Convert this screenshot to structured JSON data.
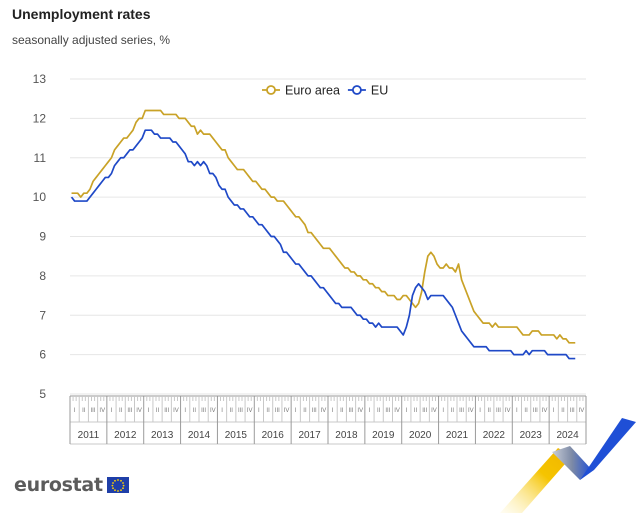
{
  "header": {
    "title": "Unemployment rates",
    "subtitle": "seasonally adjusted series, %"
  },
  "branding": {
    "logo_text": "eurostat",
    "flag_icon": "eu-flag-icon"
  },
  "colors": {
    "euro_area": "#c9a227",
    "eu": "#1f49c7",
    "grid": "#e6e6e6",
    "axis_text": "#555555"
  },
  "chart_data": {
    "type": "line",
    "title": "Unemployment rates",
    "subtitle": "seasonally adjusted series, %",
    "xlabel": "",
    "ylabel": "",
    "ylim": [
      5,
      13
    ],
    "yticks": [
      5,
      6,
      7,
      8,
      9,
      10,
      11,
      12,
      13
    ],
    "grid": true,
    "legend_position": "top-center",
    "x_start": "2011-01",
    "x_end": "2024-09",
    "frequency": "monthly",
    "years": [
      "2011",
      "2012",
      "2013",
      "2014",
      "2015",
      "2016",
      "2017",
      "2018",
      "2019",
      "2020",
      "2021",
      "2022",
      "2023",
      "2024"
    ],
    "quarter_labels": [
      "I",
      "II",
      "III",
      "IV"
    ],
    "series": [
      {
        "name": "Euro area",
        "color": "#c9a227",
        "values": [
          10.1,
          10.1,
          10.1,
          10.0,
          10.1,
          10.1,
          10.2,
          10.4,
          10.5,
          10.6,
          10.7,
          10.8,
          10.9,
          11.0,
          11.2,
          11.3,
          11.4,
          11.5,
          11.5,
          11.6,
          11.7,
          11.9,
          12.0,
          12.0,
          12.2,
          12.2,
          12.2,
          12.2,
          12.2,
          12.2,
          12.1,
          12.1,
          12.1,
          12.1,
          12.1,
          12.0,
          12.0,
          12.0,
          11.9,
          11.8,
          11.8,
          11.6,
          11.7,
          11.6,
          11.6,
          11.6,
          11.5,
          11.4,
          11.3,
          11.2,
          11.2,
          11.0,
          10.9,
          10.8,
          10.7,
          10.7,
          10.7,
          10.6,
          10.5,
          10.4,
          10.4,
          10.3,
          10.2,
          10.2,
          10.1,
          10.0,
          10.0,
          9.9,
          9.9,
          9.9,
          9.8,
          9.7,
          9.6,
          9.5,
          9.5,
          9.4,
          9.3,
          9.1,
          9.1,
          9.0,
          8.9,
          8.8,
          8.7,
          8.7,
          8.7,
          8.6,
          8.5,
          8.4,
          8.3,
          8.2,
          8.2,
          8.1,
          8.1,
          8.0,
          8.0,
          7.9,
          7.9,
          7.8,
          7.8,
          7.7,
          7.7,
          7.6,
          7.6,
          7.5,
          7.5,
          7.5,
          7.4,
          7.4,
          7.5,
          7.5,
          7.4,
          7.3,
          7.2,
          7.3,
          7.6,
          8.1,
          8.5,
          8.6,
          8.5,
          8.3,
          8.2,
          8.2,
          8.3,
          8.2,
          8.2,
          8.1,
          8.3,
          7.9,
          7.7,
          7.5,
          7.3,
          7.1,
          7.0,
          6.9,
          6.8,
          6.8,
          6.8,
          6.7,
          6.8,
          6.7,
          6.7,
          6.7,
          6.7,
          6.7,
          6.7,
          6.7,
          6.6,
          6.5,
          6.5,
          6.5,
          6.6,
          6.6,
          6.6,
          6.5,
          6.5,
          6.5,
          6.5,
          6.5,
          6.4,
          6.5,
          6.4,
          6.4,
          6.3,
          6.3,
          6.3
        ]
      },
      {
        "name": "EU",
        "color": "#1f49c7",
        "values": [
          10.0,
          9.9,
          9.9,
          9.9,
          9.9,
          9.9,
          10.0,
          10.1,
          10.2,
          10.3,
          10.4,
          10.5,
          10.5,
          10.6,
          10.8,
          10.9,
          11.0,
          11.0,
          11.1,
          11.2,
          11.2,
          11.3,
          11.4,
          11.5,
          11.7,
          11.7,
          11.7,
          11.6,
          11.6,
          11.5,
          11.5,
          11.5,
          11.5,
          11.4,
          11.4,
          11.3,
          11.2,
          11.1,
          10.9,
          10.9,
          10.8,
          10.9,
          10.8,
          10.9,
          10.8,
          10.6,
          10.6,
          10.5,
          10.3,
          10.2,
          10.2,
          10.0,
          9.9,
          9.8,
          9.8,
          9.7,
          9.7,
          9.6,
          9.5,
          9.5,
          9.4,
          9.3,
          9.3,
          9.2,
          9.1,
          9.0,
          9.0,
          8.9,
          8.8,
          8.6,
          8.6,
          8.5,
          8.4,
          8.3,
          8.3,
          8.2,
          8.1,
          8.0,
          8.0,
          7.9,
          7.8,
          7.7,
          7.7,
          7.6,
          7.5,
          7.4,
          7.3,
          7.3,
          7.2,
          7.2,
          7.2,
          7.2,
          7.1,
          7.0,
          7.0,
          6.9,
          6.9,
          6.8,
          6.8,
          6.7,
          6.8,
          6.7,
          6.7,
          6.7,
          6.7,
          6.7,
          6.7,
          6.6,
          6.5,
          6.7,
          7.0,
          7.5,
          7.7,
          7.8,
          7.7,
          7.6,
          7.4,
          7.5,
          7.5,
          7.5,
          7.5,
          7.5,
          7.4,
          7.3,
          7.2,
          7.0,
          6.8,
          6.6,
          6.5,
          6.4,
          6.3,
          6.2,
          6.2,
          6.2,
          6.2,
          6.2,
          6.1,
          6.1,
          6.1,
          6.1,
          6.1,
          6.1,
          6.1,
          6.1,
          6.0,
          6.0,
          6.0,
          6.0,
          6.1,
          6.0,
          6.1,
          6.1,
          6.1,
          6.1,
          6.1,
          6.0,
          6.0,
          6.0,
          6.0,
          6.0,
          6.0,
          6.0,
          5.9,
          5.9,
          5.9
        ]
      }
    ]
  }
}
